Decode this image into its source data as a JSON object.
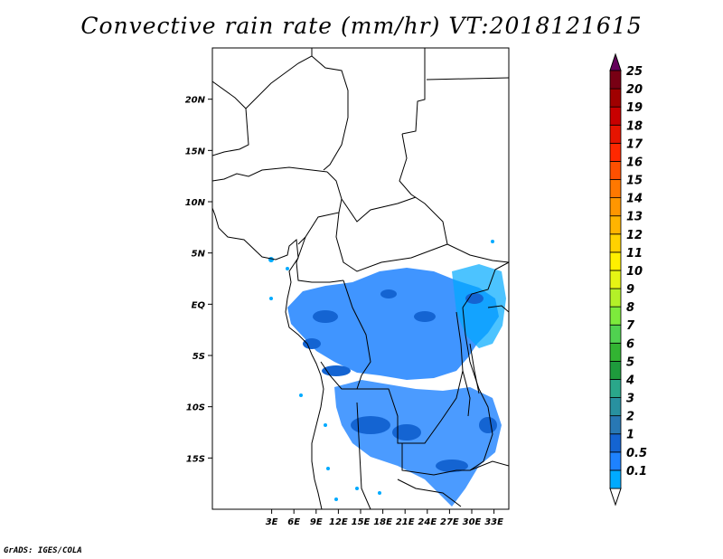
{
  "title": "Convective rain rate (mm/hr) VT:2018121615",
  "credit": "GrADS: IGES/COLA",
  "map": {
    "lon_range": [
      -5,
      35
    ],
    "lat_range": [
      -20,
      25
    ],
    "lon_ticks": [
      {
        "value": 3,
        "label": "3E"
      },
      {
        "value": 6,
        "label": "6E"
      },
      {
        "value": 9,
        "label": "9E"
      },
      {
        "value": 12,
        "label": "12E"
      },
      {
        "value": 15,
        "label": "15E"
      },
      {
        "value": 18,
        "label": "18E"
      },
      {
        "value": 21,
        "label": "21E"
      },
      {
        "value": 24,
        "label": "24E"
      },
      {
        "value": 27,
        "label": "27E"
      },
      {
        "value": 30,
        "label": "30E"
      },
      {
        "value": 33,
        "label": "33E"
      }
    ],
    "lat_ticks": [
      {
        "value": 20,
        "label": "20N"
      },
      {
        "value": 15,
        "label": "15N"
      },
      {
        "value": 10,
        "label": "10N"
      },
      {
        "value": 5,
        "label": "5N"
      },
      {
        "value": 0,
        "label": "EQ"
      },
      {
        "value": -5,
        "label": "5S"
      },
      {
        "value": -10,
        "label": "10S"
      },
      {
        "value": -15,
        "label": "15S"
      }
    ]
  },
  "colorbar": {
    "levels": [
      {
        "label": "0.1",
        "color": "#00aaff"
      },
      {
        "label": "0.5",
        "color": "#1e82ff"
      },
      {
        "label": "1",
        "color": "#1464d2"
      },
      {
        "label": "2",
        "color": "#2878b4"
      },
      {
        "label": "3",
        "color": "#2891a0"
      },
      {
        "label": "4",
        "color": "#2aa78a"
      },
      {
        "label": "5",
        "color": "#1e9b3c"
      },
      {
        "label": "6",
        "color": "#32b432"
      },
      {
        "label": "7",
        "color": "#50d250"
      },
      {
        "label": "8",
        "color": "#7dea3c"
      },
      {
        "label": "9",
        "color": "#b4f028"
      },
      {
        "label": "10",
        "color": "#e6f514"
      },
      {
        "label": "11",
        "color": "#fff000"
      },
      {
        "label": "12",
        "color": "#ffd200"
      },
      {
        "label": "13",
        "color": "#ffb400"
      },
      {
        "label": "14",
        "color": "#ff9600"
      },
      {
        "label": "15",
        "color": "#ff7800"
      },
      {
        "label": "16",
        "color": "#ff5000"
      },
      {
        "label": "17",
        "color": "#ff2800"
      },
      {
        "label": "18",
        "color": "#e61400"
      },
      {
        "label": "19",
        "color": "#c80000"
      },
      {
        "label": "20",
        "color": "#a00000"
      },
      {
        "label": "25",
        "color": "#780014"
      }
    ],
    "top_color": "#64005a"
  }
}
